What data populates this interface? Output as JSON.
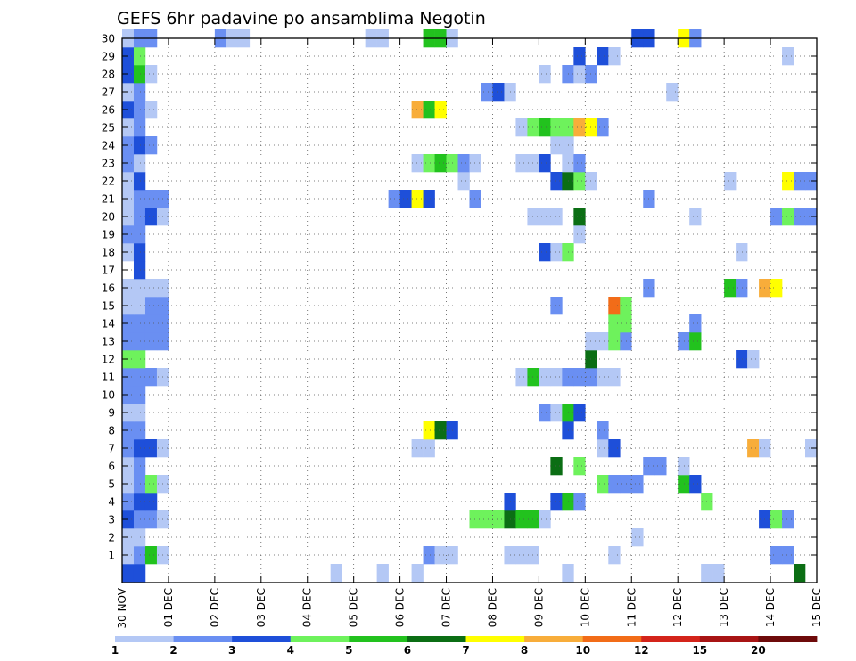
{
  "chart_data": {
    "type": "heatmap",
    "title": "GEFS 6hr padavine po ansamblima Negotin",
    "xlabel": "",
    "ylabel": "",
    "x_ticks": [
      "30 NOV",
      "01 DEC",
      "02 DEC",
      "03 DEC",
      "04 DEC",
      "05 DEC",
      "06 DEC",
      "07 DEC",
      "08 DEC",
      "09 DEC",
      "10 DEC",
      "11 DEC",
      "12 DEC",
      "13 DEC",
      "14 DEC",
      "15 DEC"
    ],
    "y_ticks": [
      "1",
      "2",
      "3",
      "4",
      "5",
      "6",
      "7",
      "8",
      "9",
      "10",
      "11",
      "12",
      "13",
      "14",
      "15",
      "16",
      "17",
      "18",
      "19",
      "20",
      "21",
      "22",
      "23",
      "24",
      "25",
      "26",
      "27",
      "28",
      "29",
      "30"
    ],
    "ylim": [
      0,
      30
    ],
    "xlim": [
      0,
      60
    ],
    "grid": true,
    "colorbar": {
      "placement": "bottom",
      "labels": [
        "1",
        "2",
        "3",
        "4",
        "5",
        "6",
        "7",
        "8",
        "10",
        "12",
        "15",
        "20"
      ],
      "colors": [
        "#b4c8f5",
        "#6a8ff2",
        "#1e4fd9",
        "#6ef25c",
        "#22c21e",
        "#0b6e14",
        "#ffff00",
        "#f8ad3a",
        "#f26c18",
        "#d4241a",
        "#a81414",
        "#6e0a0a"
      ]
    },
    "cells": [
      [
        0,
        0,
        3
      ],
      [
        1,
        0,
        3
      ],
      [
        18,
        0,
        1
      ],
      [
        22,
        0,
        1
      ],
      [
        25,
        0,
        1
      ],
      [
        38,
        0,
        1
      ],
      [
        50,
        0,
        1
      ],
      [
        51,
        0,
        1
      ],
      [
        58,
        0,
        6
      ],
      [
        0,
        1,
        1
      ],
      [
        1,
        1,
        2
      ],
      [
        2,
        1,
        5
      ],
      [
        3,
        1,
        1
      ],
      [
        26,
        1,
        2
      ],
      [
        27,
        1,
        1
      ],
      [
        28,
        1,
        1
      ],
      [
        33,
        1,
        1
      ],
      [
        34,
        1,
        1
      ],
      [
        35,
        1,
        1
      ],
      [
        42,
        1,
        1
      ],
      [
        56,
        1,
        2
      ],
      [
        57,
        1,
        2
      ],
      [
        0,
        2,
        1
      ],
      [
        1,
        2,
        1
      ],
      [
        44,
        2,
        1
      ],
      [
        0,
        3,
        3
      ],
      [
        1,
        3,
        2
      ],
      [
        2,
        3,
        2
      ],
      [
        3,
        3,
        1
      ],
      [
        30,
        3,
        4
      ],
      [
        31,
        3,
        4
      ],
      [
        32,
        3,
        4
      ],
      [
        33,
        3,
        6
      ],
      [
        34,
        3,
        5
      ],
      [
        35,
        3,
        5
      ],
      [
        36,
        3,
        1
      ],
      [
        55,
        3,
        3
      ],
      [
        56,
        3,
        4
      ],
      [
        57,
        3,
        2
      ],
      [
        0,
        4,
        2
      ],
      [
        1,
        4,
        3
      ],
      [
        2,
        4,
        3
      ],
      [
        33,
        4,
        3
      ],
      [
        37,
        4,
        3
      ],
      [
        38,
        4,
        5
      ],
      [
        39,
        4,
        2
      ],
      [
        50,
        4,
        4
      ],
      [
        0,
        5,
        1
      ],
      [
        1,
        5,
        2
      ],
      [
        2,
        5,
        4
      ],
      [
        3,
        5,
        1
      ],
      [
        41,
        5,
        4
      ],
      [
        42,
        5,
        2
      ],
      [
        43,
        5,
        2
      ],
      [
        44,
        5,
        2
      ],
      [
        48,
        5,
        5
      ],
      [
        49,
        5,
        3
      ],
      [
        0,
        6,
        1
      ],
      [
        1,
        6,
        2
      ],
      [
        37,
        6,
        6
      ],
      [
        39,
        6,
        4
      ],
      [
        45,
        6,
        2
      ],
      [
        46,
        6,
        2
      ],
      [
        48,
        6,
        1
      ],
      [
        0,
        7,
        2
      ],
      [
        1,
        7,
        3
      ],
      [
        2,
        7,
        3
      ],
      [
        3,
        7,
        1
      ],
      [
        25,
        7,
        1
      ],
      [
        26,
        7,
        1
      ],
      [
        41,
        7,
        1
      ],
      [
        42,
        7,
        3
      ],
      [
        54,
        7,
        8
      ],
      [
        55,
        7,
        1
      ],
      [
        59,
        7,
        1
      ],
      [
        0,
        8,
        2
      ],
      [
        1,
        8,
        2
      ],
      [
        26,
        8,
        7
      ],
      [
        27,
        8,
        6
      ],
      [
        28,
        8,
        3
      ],
      [
        38,
        8,
        3
      ],
      [
        41,
        8,
        2
      ],
      [
        0,
        9,
        1
      ],
      [
        1,
        9,
        1
      ],
      [
        36,
        9,
        2
      ],
      [
        37,
        9,
        1
      ],
      [
        38,
        9,
        5
      ],
      [
        39,
        9,
        3
      ],
      [
        0,
        10,
        2
      ],
      [
        1,
        10,
        2
      ],
      [
        0,
        11,
        2
      ],
      [
        1,
        11,
        2
      ],
      [
        2,
        11,
        2
      ],
      [
        3,
        11,
        1
      ],
      [
        34,
        11,
        1
      ],
      [
        35,
        11,
        5
      ],
      [
        36,
        11,
        1
      ],
      [
        37,
        11,
        1
      ],
      [
        38,
        11,
        2
      ],
      [
        39,
        11,
        2
      ],
      [
        40,
        11,
        2
      ],
      [
        41,
        11,
        1
      ],
      [
        42,
        11,
        1
      ],
      [
        0,
        12,
        4
      ],
      [
        1,
        12,
        4
      ],
      [
        40,
        12,
        6
      ],
      [
        53,
        12,
        3
      ],
      [
        54,
        12,
        1
      ],
      [
        0,
        13,
        2
      ],
      [
        1,
        13,
        2
      ],
      [
        2,
        13,
        2
      ],
      [
        3,
        13,
        2
      ],
      [
        40,
        13,
        1
      ],
      [
        41,
        13,
        1
      ],
      [
        42,
        13,
        4
      ],
      [
        43,
        13,
        2
      ],
      [
        48,
        13,
        2
      ],
      [
        49,
        13,
        5
      ],
      [
        0,
        14,
        2
      ],
      [
        1,
        14,
        2
      ],
      [
        2,
        14,
        2
      ],
      [
        3,
        14,
        2
      ],
      [
        42,
        14,
        4
      ],
      [
        43,
        14,
        4
      ],
      [
        49,
        14,
        2
      ],
      [
        0,
        15,
        1
      ],
      [
        1,
        15,
        1
      ],
      [
        2,
        15,
        2
      ],
      [
        3,
        15,
        2
      ],
      [
        37,
        15,
        2
      ],
      [
        42,
        15,
        9
      ],
      [
        43,
        15,
        4
      ],
      [
        0,
        16,
        1
      ],
      [
        1,
        16,
        1
      ],
      [
        2,
        16,
        1
      ],
      [
        3,
        16,
        1
      ],
      [
        45,
        16,
        2
      ],
      [
        52,
        16,
        5
      ],
      [
        53,
        16,
        2
      ],
      [
        55,
        16,
        8
      ],
      [
        56,
        16,
        7
      ],
      [
        1,
        17,
        3
      ],
      [
        0,
        18,
        1
      ],
      [
        1,
        18,
        3
      ],
      [
        36,
        18,
        3
      ],
      [
        37,
        18,
        1
      ],
      [
        38,
        18,
        4
      ],
      [
        53,
        18,
        1
      ],
      [
        0,
        19,
        2
      ],
      [
        1,
        19,
        2
      ],
      [
        39,
        19,
        1
      ],
      [
        0,
        20,
        1
      ],
      [
        1,
        20,
        2
      ],
      [
        2,
        20,
        3
      ],
      [
        3,
        20,
        1
      ],
      [
        35,
        20,
        1
      ],
      [
        36,
        20,
        1
      ],
      [
        37,
        20,
        1
      ],
      [
        39,
        20,
        6
      ],
      [
        49,
        20,
        1
      ],
      [
        56,
        20,
        2
      ],
      [
        57,
        20,
        4
      ],
      [
        58,
        20,
        2
      ],
      [
        59,
        20,
        2
      ],
      [
        0,
        21,
        1
      ],
      [
        1,
        21,
        2
      ],
      [
        2,
        21,
        2
      ],
      [
        3,
        21,
        2
      ],
      [
        23,
        21,
        2
      ],
      [
        24,
        21,
        3
      ],
      [
        25,
        21,
        7
      ],
      [
        26,
        21,
        3
      ],
      [
        30,
        21,
        2
      ],
      [
        45,
        21,
        2
      ],
      [
        0,
        22,
        1
      ],
      [
        1,
        22,
        3
      ],
      [
        29,
        22,
        1
      ],
      [
        37,
        22,
        3
      ],
      [
        38,
        22,
        6
      ],
      [
        39,
        22,
        4
      ],
      [
        40,
        22,
        1
      ],
      [
        52,
        22,
        1
      ],
      [
        57,
        22,
        7
      ],
      [
        58,
        22,
        2
      ],
      [
        59,
        22,
        2
      ],
      [
        0,
        23,
        2
      ],
      [
        1,
        23,
        1
      ],
      [
        25,
        23,
        1
      ],
      [
        26,
        23,
        4
      ],
      [
        27,
        23,
        5
      ],
      [
        28,
        23,
        4
      ],
      [
        29,
        23,
        2
      ],
      [
        30,
        23,
        1
      ],
      [
        34,
        23,
        1
      ],
      [
        35,
        23,
        1
      ],
      [
        36,
        23,
        3
      ],
      [
        38,
        23,
        1
      ],
      [
        39,
        23,
        2
      ],
      [
        0,
        24,
        2
      ],
      [
        1,
        24,
        3
      ],
      [
        2,
        24,
        2
      ],
      [
        37,
        24,
        1
      ],
      [
        38,
        24,
        1
      ],
      [
        0,
        25,
        1
      ],
      [
        1,
        25,
        2
      ],
      [
        34,
        25,
        1
      ],
      [
        35,
        25,
        4
      ],
      [
        36,
        25,
        5
      ],
      [
        37,
        25,
        4
      ],
      [
        38,
        25,
        4
      ],
      [
        39,
        25,
        8
      ],
      [
        40,
        25,
        7
      ],
      [
        41,
        25,
        2
      ],
      [
        0,
        26,
        3
      ],
      [
        1,
        26,
        2
      ],
      [
        2,
        26,
        1
      ],
      [
        25,
        26,
        8
      ],
      [
        26,
        26,
        5
      ],
      [
        27,
        26,
        7
      ],
      [
        0,
        27,
        1
      ],
      [
        1,
        27,
        2
      ],
      [
        31,
        27,
        2
      ],
      [
        32,
        27,
        3
      ],
      [
        33,
        27,
        1
      ],
      [
        47,
        27,
        1
      ],
      [
        0,
        28,
        3
      ],
      [
        1,
        28,
        5
      ],
      [
        2,
        28,
        1
      ],
      [
        36,
        28,
        1
      ],
      [
        38,
        28,
        2
      ],
      [
        39,
        28,
        1
      ],
      [
        40,
        28,
        2
      ],
      [
        0,
        29,
        3
      ],
      [
        1,
        29,
        4
      ],
      [
        39,
        29,
        3
      ],
      [
        41,
        29,
        3
      ],
      [
        42,
        29,
        1
      ],
      [
        57,
        29,
        1
      ],
      [
        0,
        30,
        1
      ],
      [
        1,
        30,
        2
      ],
      [
        2,
        30,
        2
      ],
      [
        8,
        30,
        2
      ],
      [
        9,
        30,
        1
      ],
      [
        10,
        30,
        1
      ],
      [
        21,
        30,
        1
      ],
      [
        22,
        30,
        1
      ],
      [
        26,
        30,
        5
      ],
      [
        27,
        30,
        5
      ],
      [
        28,
        30,
        1
      ],
      [
        44,
        30,
        3
      ],
      [
        45,
        30,
        3
      ],
      [
        48,
        30,
        7
      ],
      [
        49,
        30,
        2
      ]
    ]
  }
}
